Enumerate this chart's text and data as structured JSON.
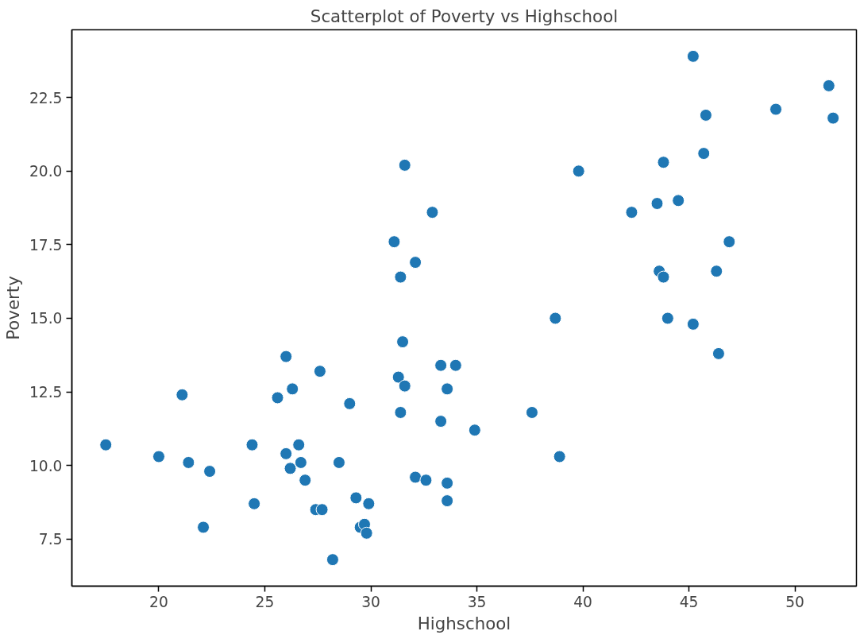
{
  "chart_data": {
    "type": "scatter",
    "title": "Scatterplot of Poverty vs Highschool",
    "xlabel": "Highschool",
    "ylabel": "Poverty",
    "x": [
      17.5,
      20,
      21.1,
      21.4,
      22.1,
      22.4,
      24.4,
      24.5,
      25.6,
      26.0,
      26.0,
      26.2,
      26.3,
      26.6,
      26.7,
      26.9,
      27.4,
      27.6,
      27.7,
      28.2,
      28.5,
      29.0,
      29.3,
      29.5,
      29.7,
      29.8,
      29.9,
      31.1,
      31.3,
      31.4,
      31.4,
      31.5,
      31.6,
      31.6,
      32.1,
      32.1,
      32.6,
      32.9,
      33.3,
      33.3,
      33.6,
      33.6,
      33.6,
      34.0,
      34.9,
      37.6,
      38.7,
      38.9,
      39.8,
      42.3,
      43.5,
      43.6,
      43.8,
      43.8,
      44.0,
      44.5,
      45.2,
      45.2,
      45.7,
      45.8,
      46.3,
      46.4,
      46.9,
      49.1,
      51.6,
      51.8
    ],
    "series": [
      {
        "color": "#1f77b4",
        "values": [
          10.7,
          10.3,
          12.4,
          10.1,
          7.9,
          9.8,
          10.7,
          8.7,
          12.3,
          13.7,
          10.4,
          9.9,
          12.6,
          10.7,
          10.1,
          9.5,
          8.5,
          13.2,
          8.5,
          6.8,
          10.1,
          12.1,
          8.9,
          7.9,
          8.0,
          7.7,
          8.7,
          17.6,
          13.0,
          16.4,
          11.8,
          14.2,
          20.2,
          12.7,
          16.9,
          9.6,
          9.5,
          18.6,
          13.4,
          11.5,
          12.6,
          9.4,
          8.8,
          13.4,
          11.2,
          11.8,
          15.0,
          10.3,
          20.0,
          18.6,
          18.9,
          16.6,
          20.3,
          16.4,
          15.0,
          19.0,
          23.9,
          14.8,
          20.6,
          21.9,
          16.6,
          13.8,
          17.6,
          22.1,
          22.9,
          21.8
        ]
      }
    ],
    "xlim": [
      15.9,
      52.9
    ],
    "ylim": [
      5.9,
      24.8
    ],
    "xticks": [
      20,
      25,
      30,
      35,
      40,
      45,
      50
    ],
    "yticks": [
      7.5,
      {
        "value": 10,
        "label": "10.0"
      },
      12.5,
      {
        "value": 15,
        "label": "15.0"
      },
      17.5,
      {
        "value": 20,
        "label": "20.0"
      },
      22.5
    ],
    "grid": false,
    "marker": "circle"
  }
}
